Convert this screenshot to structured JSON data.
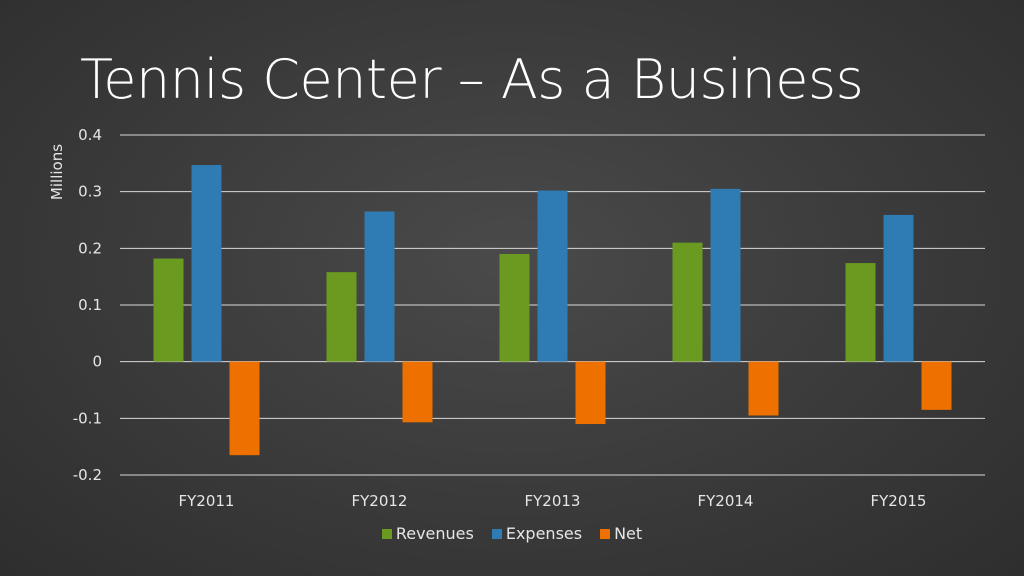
{
  "title": "Tennis Center – As a Business",
  "chart_data": {
    "type": "bar",
    "ylabel": "Millions",
    "xlabel": "",
    "categories": [
      "FY2011",
      "FY2012",
      "FY2013",
      "FY2014",
      "FY2015"
    ],
    "series": [
      {
        "name": "Revenues",
        "color": "#6a9a1f",
        "values": [
          0.182,
          0.158,
          0.19,
          0.21,
          0.174
        ]
      },
      {
        "name": "Expenses",
        "color": "#2f7bb3",
        "values": [
          0.347,
          0.265,
          0.302,
          0.305,
          0.259
        ]
      },
      {
        "name": "Net",
        "color": "#ee7100",
        "values": [
          -0.165,
          -0.107,
          -0.11,
          -0.095,
          -0.085
        ]
      }
    ],
    "ylim": [
      -0.2,
      0.4
    ],
    "yticks": [
      0.4,
      0.3,
      0.2,
      0.1,
      0,
      -0.1,
      -0.2
    ],
    "ytick_labels": [
      "0.4",
      "0.3",
      "0.2",
      "0.1",
      "0",
      "-0.1",
      "-0.2"
    ],
    "grid": true,
    "legend_position": "bottom"
  }
}
